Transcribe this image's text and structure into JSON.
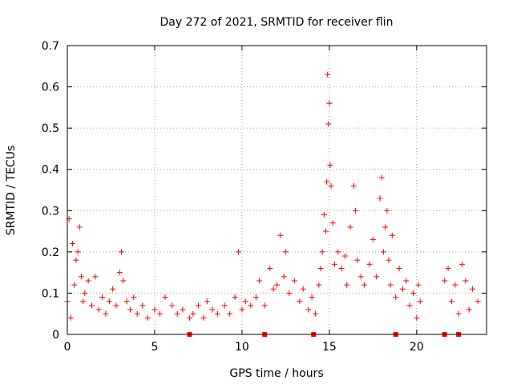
{
  "chart_data": {
    "type": "scatter",
    "title": "Day 272 of 2021, SRMTID for receiver flin",
    "xlabel": "GPS time / hours",
    "ylabel": "SRMTID / TECUs",
    "xlim": [
      0,
      24
    ],
    "ylim": [
      0,
      0.7
    ],
    "xticks": [
      "0",
      "5",
      "10",
      "15",
      "20"
    ],
    "yticks": [
      "0",
      "0.1",
      "0.2",
      "0.3",
      "0.4",
      "0.5",
      "0.6",
      "0.7"
    ],
    "grid": true,
    "marker": "+",
    "color": "#ff0000",
    "data_gap_markers_x": [
      7.0,
      11.3,
      14.1,
      18.8,
      21.6,
      22.4
    ],
    "series": [
      {
        "name": "SRMTID",
        "x": [
          0.0,
          0.1,
          0.2,
          0.3,
          0.4,
          0.5,
          0.6,
          0.7,
          0.8,
          0.9,
          1.0,
          1.2,
          1.4,
          1.6,
          1.8,
          2.0,
          2.2,
          2.4,
          2.6,
          2.8,
          3.0,
          3.1,
          3.2,
          3.4,
          3.6,
          3.8,
          4.0,
          4.3,
          4.6,
          5.0,
          5.3,
          5.6,
          6.0,
          6.3,
          6.6,
          7.0,
          7.2,
          7.5,
          7.8,
          8.0,
          8.3,
          8.6,
          9.0,
          9.3,
          9.6,
          9.8,
          10.0,
          10.2,
          10.5,
          10.8,
          11.0,
          11.3,
          11.6,
          11.8,
          12.0,
          12.2,
          12.4,
          12.5,
          12.7,
          13.0,
          13.3,
          13.5,
          13.8,
          14.0,
          14.2,
          14.4,
          14.5,
          14.6,
          14.7,
          14.8,
          14.85,
          14.9,
          14.95,
          15.0,
          15.05,
          15.1,
          15.2,
          15.3,
          15.5,
          15.7,
          15.9,
          16.0,
          16.2,
          16.4,
          16.5,
          16.6,
          16.8,
          17.0,
          17.3,
          17.5,
          17.7,
          17.9,
          18.0,
          18.1,
          18.2,
          18.3,
          18.4,
          18.5,
          18.6,
          18.8,
          19.0,
          19.2,
          19.4,
          19.6,
          19.8,
          20.0,
          20.1,
          20.2,
          21.6,
          21.8,
          22.0,
          22.2,
          22.4,
          22.6,
          22.8,
          23.0,
          23.2,
          23.5
        ],
        "y": [
          0.08,
          0.28,
          0.04,
          0.22,
          0.12,
          0.18,
          0.2,
          0.26,
          0.14,
          0.08,
          0.1,
          0.13,
          0.07,
          0.14,
          0.06,
          0.09,
          0.05,
          0.08,
          0.11,
          0.07,
          0.15,
          0.2,
          0.13,
          0.08,
          0.06,
          0.09,
          0.05,
          0.07,
          0.04,
          0.06,
          0.05,
          0.09,
          0.07,
          0.05,
          0.06,
          0.04,
          0.05,
          0.07,
          0.04,
          0.08,
          0.06,
          0.05,
          0.07,
          0.05,
          0.09,
          0.2,
          0.06,
          0.08,
          0.07,
          0.09,
          0.13,
          0.07,
          0.16,
          0.11,
          0.12,
          0.24,
          0.14,
          0.2,
          0.1,
          0.13,
          0.08,
          0.11,
          0.06,
          0.09,
          0.05,
          0.12,
          0.16,
          0.2,
          0.29,
          0.25,
          0.37,
          0.63,
          0.51,
          0.56,
          0.41,
          0.36,
          0.27,
          0.17,
          0.2,
          0.16,
          0.19,
          0.12,
          0.26,
          0.36,
          0.3,
          0.18,
          0.14,
          0.12,
          0.17,
          0.23,
          0.14,
          0.33,
          0.38,
          0.2,
          0.26,
          0.3,
          0.18,
          0.12,
          0.24,
          0.09,
          0.16,
          0.11,
          0.13,
          0.07,
          0.1,
          0.04,
          0.12,
          0.08,
          0.13,
          0.16,
          0.08,
          0.12,
          0.05,
          0.17,
          0.13,
          0.06,
          0.11,
          0.08
        ]
      }
    ]
  }
}
